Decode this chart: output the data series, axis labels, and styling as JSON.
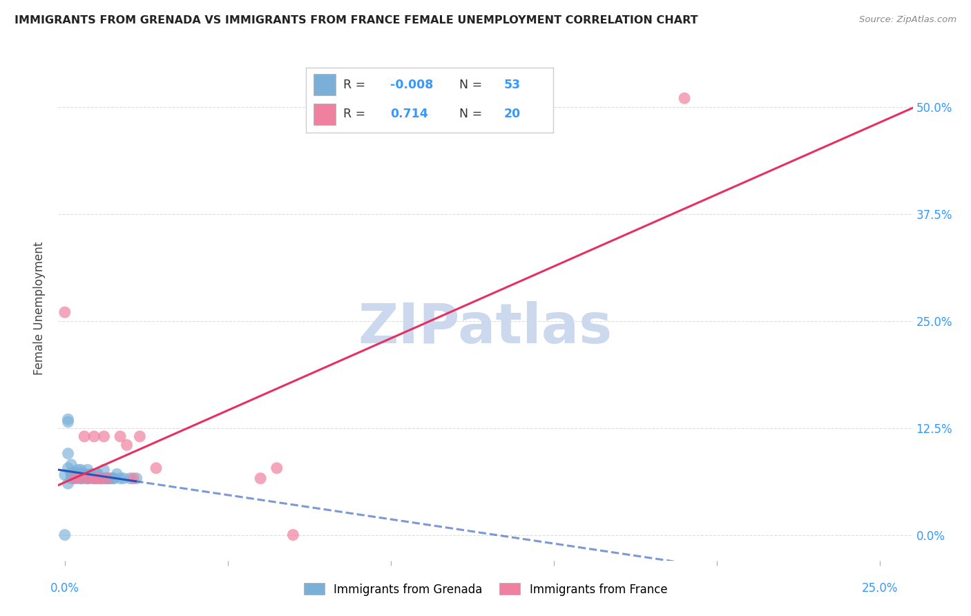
{
  "title": "IMMIGRANTS FROM GRENADA VS IMMIGRANTS FROM FRANCE FEMALE UNEMPLOYMENT CORRELATION CHART",
  "source": "Source: ZipAtlas.com",
  "ylabel": "Female Unemployment",
  "ytick_labels": [
    "0.0%",
    "12.5%",
    "25.0%",
    "37.5%",
    "50.0%"
  ],
  "ytick_values": [
    0.0,
    0.125,
    0.25,
    0.375,
    0.5
  ],
  "xtick_labels": [
    "0.0%",
    "25.0%"
  ],
  "xtick_values": [
    0.0,
    0.25
  ],
  "xlim": [
    -0.002,
    0.26
  ],
  "ylim": [
    -0.03,
    0.56
  ],
  "grenada_color": "#7ab0d8",
  "france_color": "#f080a0",
  "grenada_line_color": "#2255bb",
  "france_line_color": "#e83060",
  "label_color": "#3399ff",
  "watermark": "ZIPatlas",
  "watermark_color": "#ccd8ee",
  "grenada_scatter": [
    [
      0.0,
      0.07
    ],
    [
      0.001,
      0.095
    ],
    [
      0.001,
      0.078
    ],
    [
      0.001,
      0.06
    ],
    [
      0.002,
      0.082
    ],
    [
      0.002,
      0.072
    ],
    [
      0.003,
      0.068
    ],
    [
      0.003,
      0.073
    ],
    [
      0.004,
      0.076
    ],
    [
      0.005,
      0.072
    ],
    [
      0.005,
      0.067
    ],
    [
      0.006,
      0.071
    ],
    [
      0.007,
      0.066
    ],
    [
      0.008,
      0.066
    ],
    [
      0.008,
      0.071
    ],
    [
      0.009,
      0.071
    ],
    [
      0.01,
      0.066
    ],
    [
      0.01,
      0.071
    ],
    [
      0.011,
      0.066
    ],
    [
      0.012,
      0.066
    ],
    [
      0.012,
      0.076
    ],
    [
      0.013,
      0.066
    ],
    [
      0.014,
      0.066
    ],
    [
      0.015,
      0.066
    ],
    [
      0.016,
      0.071
    ],
    [
      0.017,
      0.066
    ],
    [
      0.018,
      0.066
    ],
    [
      0.002,
      0.066
    ],
    [
      0.002,
      0.071
    ],
    [
      0.003,
      0.066
    ],
    [
      0.003,
      0.071
    ],
    [
      0.004,
      0.066
    ],
    [
      0.004,
      0.071
    ],
    [
      0.005,
      0.066
    ],
    [
      0.005,
      0.076
    ],
    [
      0.006,
      0.066
    ],
    [
      0.006,
      0.071
    ],
    [
      0.007,
      0.076
    ],
    [
      0.007,
      0.066
    ],
    [
      0.008,
      0.071
    ],
    [
      0.009,
      0.066
    ],
    [
      0.009,
      0.066
    ],
    [
      0.01,
      0.071
    ],
    [
      0.011,
      0.066
    ],
    [
      0.012,
      0.066
    ],
    [
      0.013,
      0.066
    ],
    [
      0.014,
      0.066
    ],
    [
      0.015,
      0.066
    ],
    [
      0.001,
      0.135
    ],
    [
      0.02,
      0.066
    ],
    [
      0.0,
      0.0
    ],
    [
      0.001,
      0.132
    ],
    [
      0.022,
      0.066
    ]
  ],
  "france_scatter": [
    [
      0.0,
      0.26
    ],
    [
      0.003,
      0.066
    ],
    [
      0.005,
      0.066
    ],
    [
      0.006,
      0.115
    ],
    [
      0.007,
      0.066
    ],
    [
      0.009,
      0.115
    ],
    [
      0.009,
      0.066
    ],
    [
      0.01,
      0.066
    ],
    [
      0.011,
      0.066
    ],
    [
      0.012,
      0.115
    ],
    [
      0.013,
      0.066
    ],
    [
      0.017,
      0.115
    ],
    [
      0.019,
      0.105
    ],
    [
      0.021,
      0.066
    ],
    [
      0.023,
      0.115
    ],
    [
      0.028,
      0.078
    ],
    [
      0.06,
      0.066
    ],
    [
      0.065,
      0.078
    ],
    [
      0.07,
      0.0
    ],
    [
      0.19,
      0.51
    ]
  ],
  "background_color": "#ffffff",
  "grid_color": "#dddddd"
}
